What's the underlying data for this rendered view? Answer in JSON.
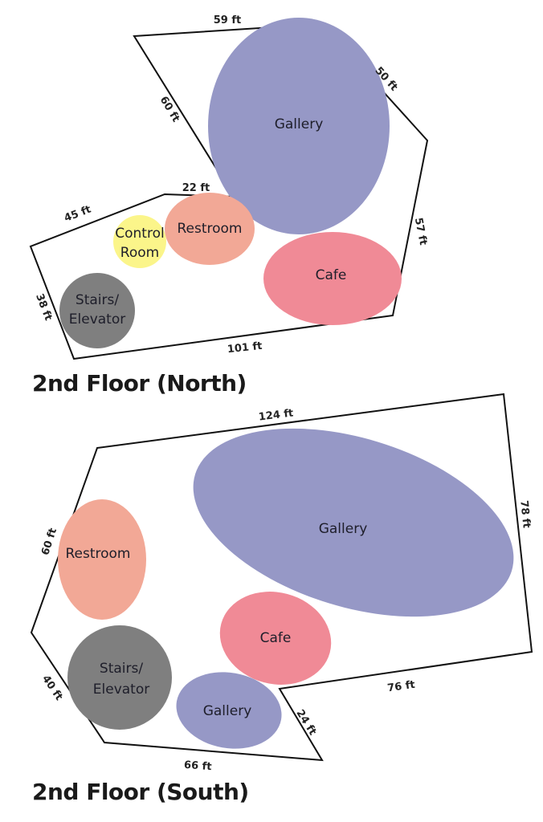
{
  "colors": {
    "gallery": "#9698c6",
    "restroom": "#f2a896",
    "cafe": "#f08a96",
    "control_room": "#fbf58a",
    "stairs_elevator": "#7f7f7f",
    "outline": "#111111"
  },
  "north": {
    "title": "2nd Floor (North)",
    "dimensions": {
      "top": "59 ft",
      "upper_right": "50 ft",
      "right": "57 ft",
      "bottom": "101 ft",
      "left": "38 ft",
      "upper_left": "45 ft",
      "inner_ledge": "22 ft",
      "inner_diagonal": "60 ft"
    },
    "rooms": {
      "gallery": "Gallery",
      "restroom": "Restroom",
      "control_room_line1": "Control",
      "control_room_line2": "Room",
      "cafe": "Cafe",
      "stairs_line1": "Stairs/",
      "stairs_line2": "Elevator"
    }
  },
  "south": {
    "title": "2nd Floor (South)",
    "dimensions": {
      "top": "124 ft",
      "right": "78 ft",
      "notch": "76 ft",
      "notch_diagonal": "24 ft",
      "bottom": "66 ft",
      "lower_left": "40 ft",
      "upper_left": "60 ft"
    },
    "rooms": {
      "gallery_large": "Gallery",
      "restroom": "Restroom",
      "cafe": "Cafe",
      "stairs_line1": "Stairs/",
      "stairs_line2": "Elevator",
      "gallery_small": "Gallery"
    }
  }
}
